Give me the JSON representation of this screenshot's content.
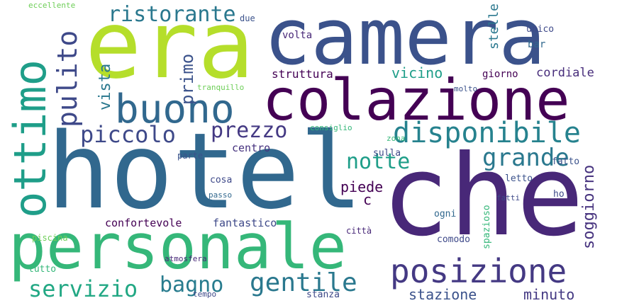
{
  "words": [
    {
      "text": "camera",
      "color": "#3b528b"
    },
    {
      "text": "era",
      "color": "#b5de2b"
    },
    {
      "text": "hotel",
      "color": "#31688e"
    },
    {
      "text": "che",
      "color": "#482878"
    },
    {
      "text": "colazione",
      "color": "#440154"
    },
    {
      "text": "personale",
      "color": "#35b779"
    },
    {
      "text": "ottimo",
      "color": "#1f9e89"
    },
    {
      "text": "buono",
      "color": "#31688e"
    },
    {
      "text": "posizione",
      "color": "#443983"
    },
    {
      "text": "disponibile",
      "color": "#26828e"
    },
    {
      "text": "ristorante",
      "color": "#2a788e"
    },
    {
      "text": "pulito",
      "color": "#3e4989"
    },
    {
      "text": "piccolo",
      "color": "#3e4989"
    },
    {
      "text": "prezzo",
      "color": "#443983"
    },
    {
      "text": "grande",
      "color": "#2a788e"
    },
    {
      "text": "notte",
      "color": "#1f9e89"
    },
    {
      "text": "servizio",
      "color": "#22a884"
    },
    {
      "text": "bagno",
      "color": "#287c8e"
    },
    {
      "text": "gentile",
      "color": "#2a788e"
    },
    {
      "text": "stazione",
      "color": "#3b528b"
    },
    {
      "text": "minuto",
      "color": "#443983"
    },
    {
      "text": "soggiorno",
      "color": "#46327e"
    },
    {
      "text": "struttura",
      "color": "#440154"
    },
    {
      "text": "vicino",
      "color": "#1f9e89"
    },
    {
      "text": "giorno",
      "color": "#440154"
    },
    {
      "text": "cordiale",
      "color": "#472d7b"
    },
    {
      "text": "centro",
      "color": "#46327e"
    },
    {
      "text": "piede",
      "color": "#440154"
    },
    {
      "text": "confortevole",
      "color": "#440154"
    },
    {
      "text": "fantastico",
      "color": "#3e4989"
    },
    {
      "text": "primo",
      "color": "#3b528b"
    },
    {
      "text": "vista",
      "color": "#2a788e"
    },
    {
      "text": "stelle",
      "color": "#2a788e"
    },
    {
      "text": "volta",
      "color": "#482878"
    },
    {
      "text": "bar",
      "color": "#31688e"
    },
    {
      "text": "unico",
      "color": "#3e4989"
    },
    {
      "text": "consiglio",
      "color": "#35b779"
    },
    {
      "text": "letto",
      "color": "#3b528b"
    },
    {
      "text": "fatto",
      "color": "#3b528b"
    },
    {
      "text": "ogni",
      "color": "#31688e"
    },
    {
      "text": "comodo",
      "color": "#3e4989"
    },
    {
      "text": "città",
      "color": "#482878"
    },
    {
      "text": "sulla",
      "color": "#3e4989"
    },
    {
      "text": "cosa",
      "color": "#3e4989"
    },
    {
      "text": "passo",
      "color": "#31688e"
    },
    {
      "text": "tutto",
      "color": "#35b779"
    },
    {
      "text": "c",
      "color": "#440154"
    },
    {
      "text": "spazioso",
      "color": "#35b779"
    },
    {
      "text": "piscina",
      "color": "#6ece58"
    },
    {
      "text": "parte",
      "color": "#3b528b"
    },
    {
      "text": "stanza",
      "color": "#3e4989"
    },
    {
      "text": "eccellente",
      "color": "#6ece58"
    },
    {
      "text": "due",
      "color": "#3b528b"
    },
    {
      "text": "tempo",
      "color": "#3e4989"
    },
    {
      "text": "tranquillo",
      "color": "#6ece58"
    },
    {
      "text": "zona",
      "color": "#35b779"
    },
    {
      "text": "atmosfera",
      "color": "#482878"
    },
    {
      "text": "ho",
      "color": "#3e4989"
    },
    {
      "text": "fatti",
      "color": "#3e4989"
    },
    {
      "text": "molto",
      "color": "#3b528b"
    }
  ]
}
